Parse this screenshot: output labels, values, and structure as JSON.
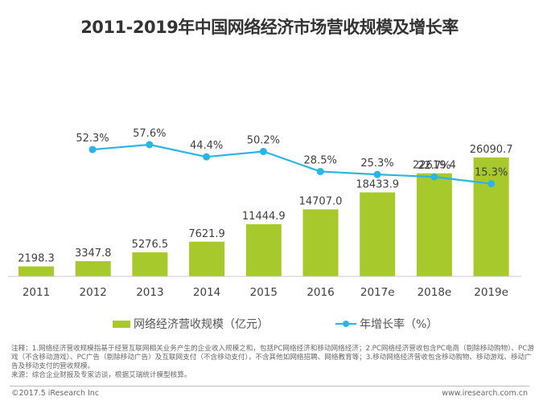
{
  "title": "2011-2019年中国网络经济市场营收规模及增长率",
  "chart_data": {
    "type": "bar",
    "title": "2011-2019年中国网络经济市场营收规模及增长率",
    "categories": [
      "2011",
      "2012",
      "2013",
      "2014",
      "2015",
      "2016",
      "2017e",
      "2018e",
      "2019e"
    ],
    "series": [
      {
        "name": "网络经济营收规模（亿元）",
        "type": "bar",
        "color": "#a8c92b",
        "values": [
          2198.3,
          3347.8,
          5276.5,
          7621.9,
          11444.9,
          14707.0,
          18433.9,
          22619.4,
          26090.7
        ],
        "labels": [
          "2198.3",
          "3347.8",
          "5276.5",
          "7621.9",
          "11444.9",
          "14707.0",
          "18433.9",
          "22619.4",
          "26090.7"
        ]
      },
      {
        "name": "年增长率（%）",
        "type": "line",
        "color": "#29b6e6",
        "values": [
          null,
          52.3,
          57.6,
          44.4,
          50.2,
          28.5,
          25.3,
          22.7,
          15.3
        ],
        "labels": [
          "",
          "52.3%",
          "57.6%",
          "44.4%",
          "50.2%",
          "28.5%",
          "25.3%",
          "22.7%",
          "15.3%"
        ]
      }
    ],
    "xlabel": "",
    "ylabel": "",
    "ylim": [
      0,
      26090.7
    ],
    "grid": false,
    "legend": "bottom"
  },
  "legend": {
    "bar_label": "网络经济营收规模（亿元）",
    "line_label": "年增长率（%）"
  },
  "notes": {
    "line1": "注释：1.网络经济营收规模指基于经营互联网相关业务产生的企业收入规模之和，包括PC网络经济和移动网络经济；2.PC网络经济营收包含PC电商（剔除移动购物）、PC游戏（不含移动游戏）、PC广告（剔除移动广告）及互联网支付（不含移动支付），不含其他如网络招聘、网络教育等；3.移动网络经济营收包含移动购物、移动游戏、移动广告及移动支付的营收规模。",
    "line2": "来源：综合企业财报及专家访谈，根据艾瑞统计模型核算。"
  },
  "footer": {
    "copyright": "©2017.5 iResearch Inc",
    "website": "www.iresearch.com.cn"
  }
}
